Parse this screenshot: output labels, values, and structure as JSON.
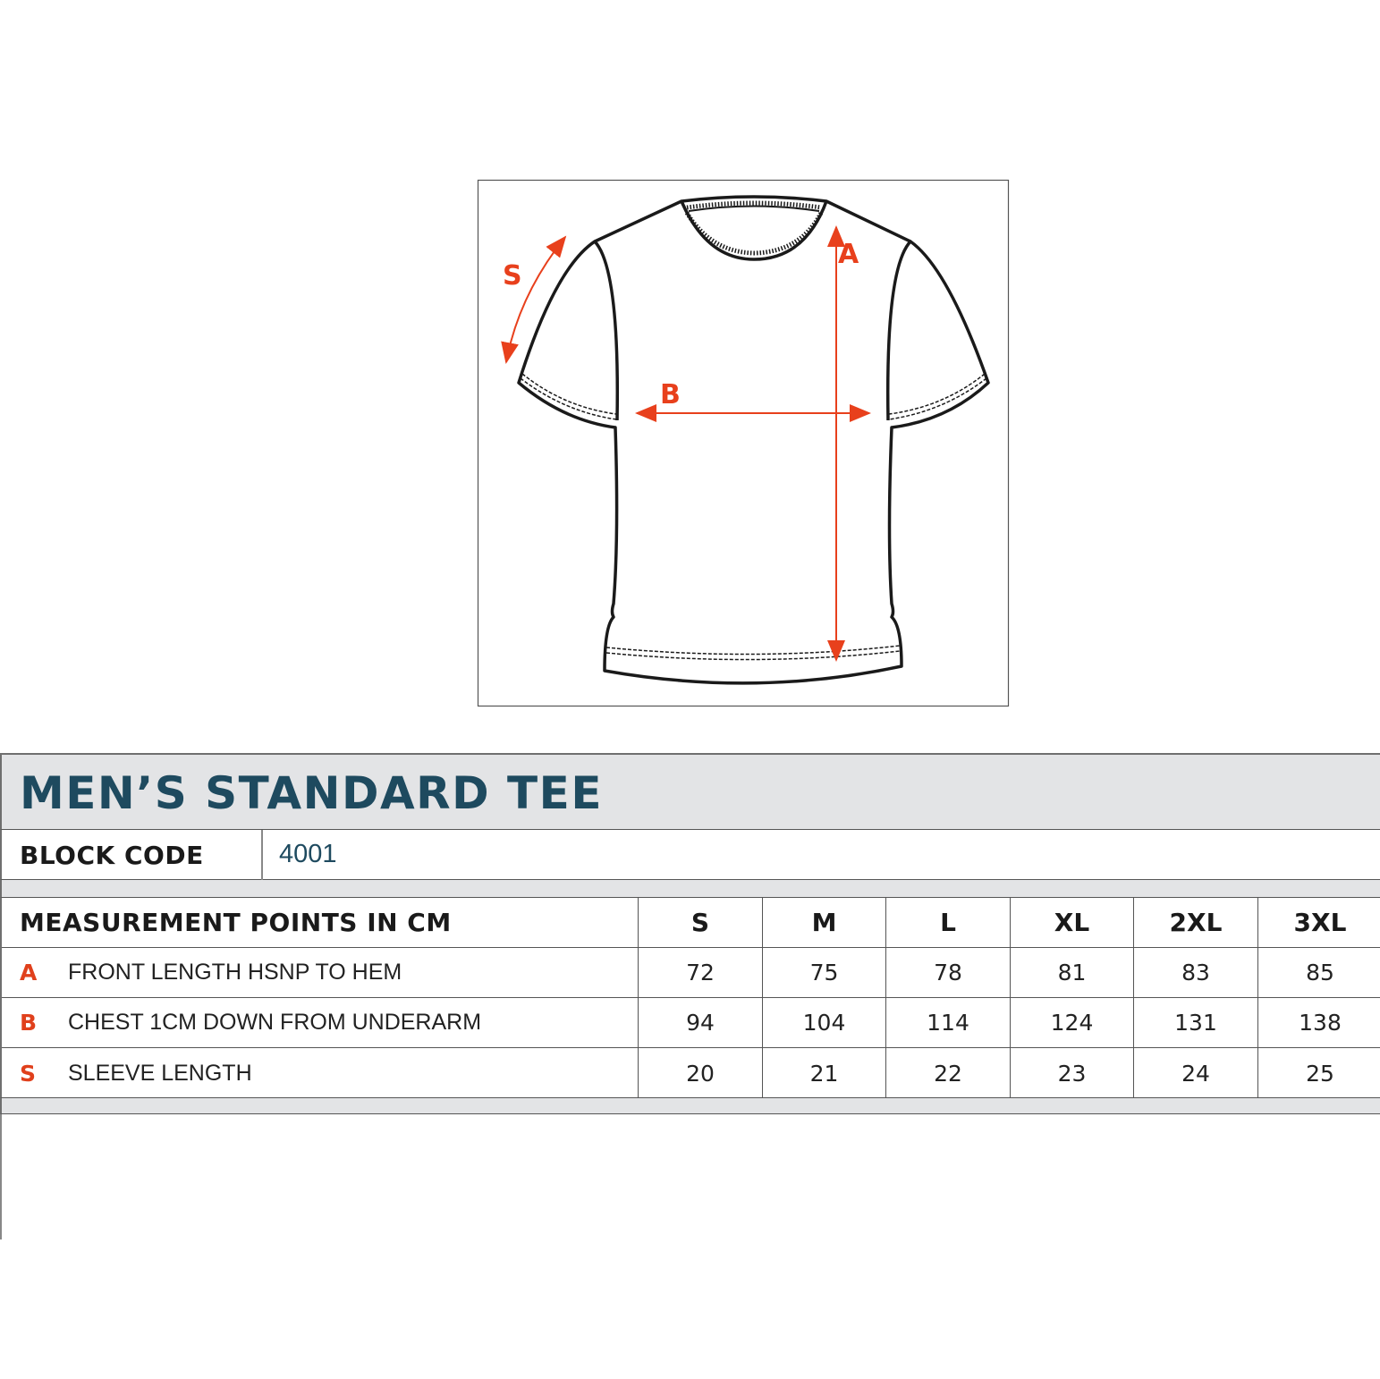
{
  "diagram": {
    "labels": {
      "a": "A",
      "b": "B",
      "s": "S"
    },
    "accent_color": "#e8401c",
    "outline_color": "#1a1a1a"
  },
  "sheet": {
    "title": "MEN’S STANDARD TEE",
    "block_code_label": "BLOCK CODE",
    "block_code_value": "4001",
    "table": {
      "header": "MEASUREMENT POINTS IN CM",
      "sizes": [
        "S",
        "M",
        "L",
        "XL",
        "2XL",
        "3XL"
      ],
      "rows": [
        {
          "code": "A",
          "label": "FRONT LENGTH HSNP TO HEM",
          "values": [
            "72",
            "75",
            "78",
            "81",
            "83",
            "85"
          ]
        },
        {
          "code": "B",
          "label": "CHEST 1CM DOWN FROM UNDERARM",
          "values": [
            "94",
            "104",
            "114",
            "124",
            "131",
            "138"
          ]
        },
        {
          "code": "S",
          "label": "SLEEVE LENGTH",
          "values": [
            "20",
            "21",
            "22",
            "23",
            "24",
            "25"
          ]
        }
      ]
    }
  },
  "colors": {
    "title": "#1e4a5f",
    "band": "#e3e4e6",
    "code_letter": "#e0401c"
  }
}
